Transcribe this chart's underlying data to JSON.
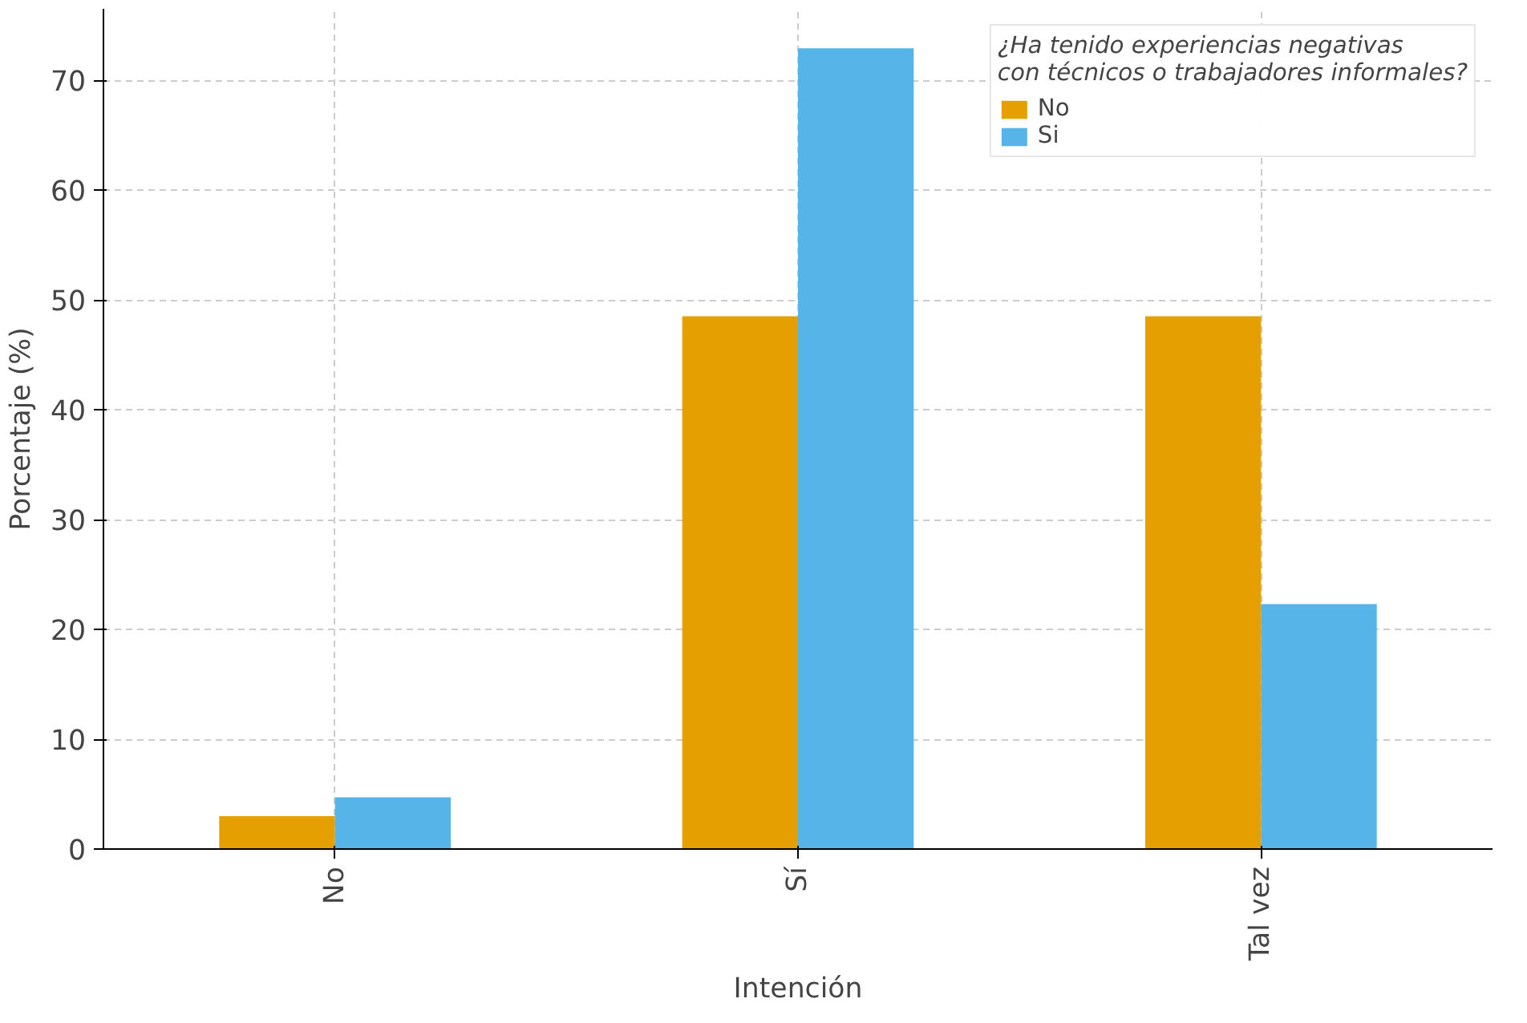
{
  "chart_data": {
    "type": "bar",
    "xlabel": "Intención",
    "ylabel": "Porcentaje (%)",
    "legend_title": "¿Ha tenido experiencias negativas con técnicos o trabajadores informales?",
    "categories": [
      "No",
      "Sí",
      "Tal vez"
    ],
    "series": [
      {
        "name": "No",
        "color": "#e69f00",
        "values": [
          3.0,
          48.5,
          48.5
        ]
      },
      {
        "name": "Si",
        "color": "#56b4e9",
        "values": [
          4.7,
          72.9,
          22.3
        ]
      }
    ],
    "ylim": [
      0,
      76.5
    ],
    "yticks": [
      0,
      10,
      20,
      30,
      40,
      50,
      60,
      70
    ],
    "grid": true,
    "legend": "top right"
  }
}
